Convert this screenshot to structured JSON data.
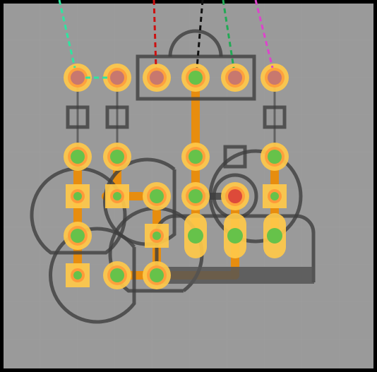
{
  "colors": {
    "frame": "#000000",
    "board": "#9a9a9a",
    "grid": "#a3a3a3",
    "trace": "#f08c00",
    "pad_outer": "#ffc94a",
    "pad_mid": "#ff9a3a",
    "core_green": "#66c24a",
    "core_pink": "#c8786e",
    "core_red": "#dd4a3a",
    "outline": "#3e3e3e",
    "bar": "#555555"
  },
  "wires": [
    {
      "name": "teal-wire",
      "color": "#2ee6a0"
    },
    {
      "name": "red-wire",
      "color": "#cc1111"
    },
    {
      "name": "black-wire",
      "color": "#111111"
    },
    {
      "name": "green-wire",
      "color": "#22aa55"
    },
    {
      "name": "magenta-wire",
      "color": "#dd44cc"
    }
  ],
  "header_row": [
    {
      "name": "header-pad-1",
      "core": "pink"
    },
    {
      "name": "header-pad-2",
      "core": "pink"
    },
    {
      "name": "header-pad-3",
      "core": "pink"
    },
    {
      "name": "header-pad-4",
      "core": "green"
    },
    {
      "name": "header-pad-5",
      "core": "pink"
    },
    {
      "name": "header-pad-6",
      "core": "pink"
    }
  ]
}
